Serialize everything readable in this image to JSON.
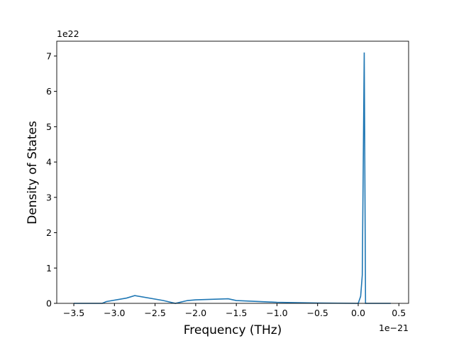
{
  "chart_data": {
    "type": "line",
    "xlabel": "Frequency (THz)",
    "ylabel": "Density of States",
    "x_offset_label": "1e−21",
    "y_offset_label": "1e22",
    "xlim": [
      -3.71,
      0.62
    ],
    "ylim": [
      0,
      7.42
    ],
    "xticks": [
      {
        "value": -3.5,
        "label": "−3.5"
      },
      {
        "value": -3.0,
        "label": "−3.0"
      },
      {
        "value": -2.5,
        "label": "−2.5"
      },
      {
        "value": -2.0,
        "label": "−2.0"
      },
      {
        "value": -1.5,
        "label": "−1.5"
      },
      {
        "value": -1.0,
        "label": "−1.0"
      },
      {
        "value": -0.5,
        "label": "−0.5"
      },
      {
        "value": 0.0,
        "label": "0.0"
      },
      {
        "value": 0.5,
        "label": "0.5"
      }
    ],
    "yticks": [
      0,
      1,
      2,
      3,
      4,
      5,
      6,
      7
    ],
    "series": [
      {
        "color": "#1f77b4",
        "x": [
          -3.5,
          -3.15,
          -3.1,
          -2.85,
          -2.75,
          -2.4,
          -2.25,
          -2.1,
          -2.0,
          -1.6,
          -1.5,
          -1.0,
          -0.5,
          0.0,
          0.03,
          0.05,
          0.074,
          0.09,
          0.4
        ],
        "values": [
          0,
          0,
          0.05,
          0.15,
          0.22,
          0.08,
          0,
          0.08,
          0.1,
          0.13,
          0.08,
          0.03,
          0.01,
          0,
          0.2,
          0.8,
          7.1,
          0,
          0
        ]
      }
    ]
  }
}
